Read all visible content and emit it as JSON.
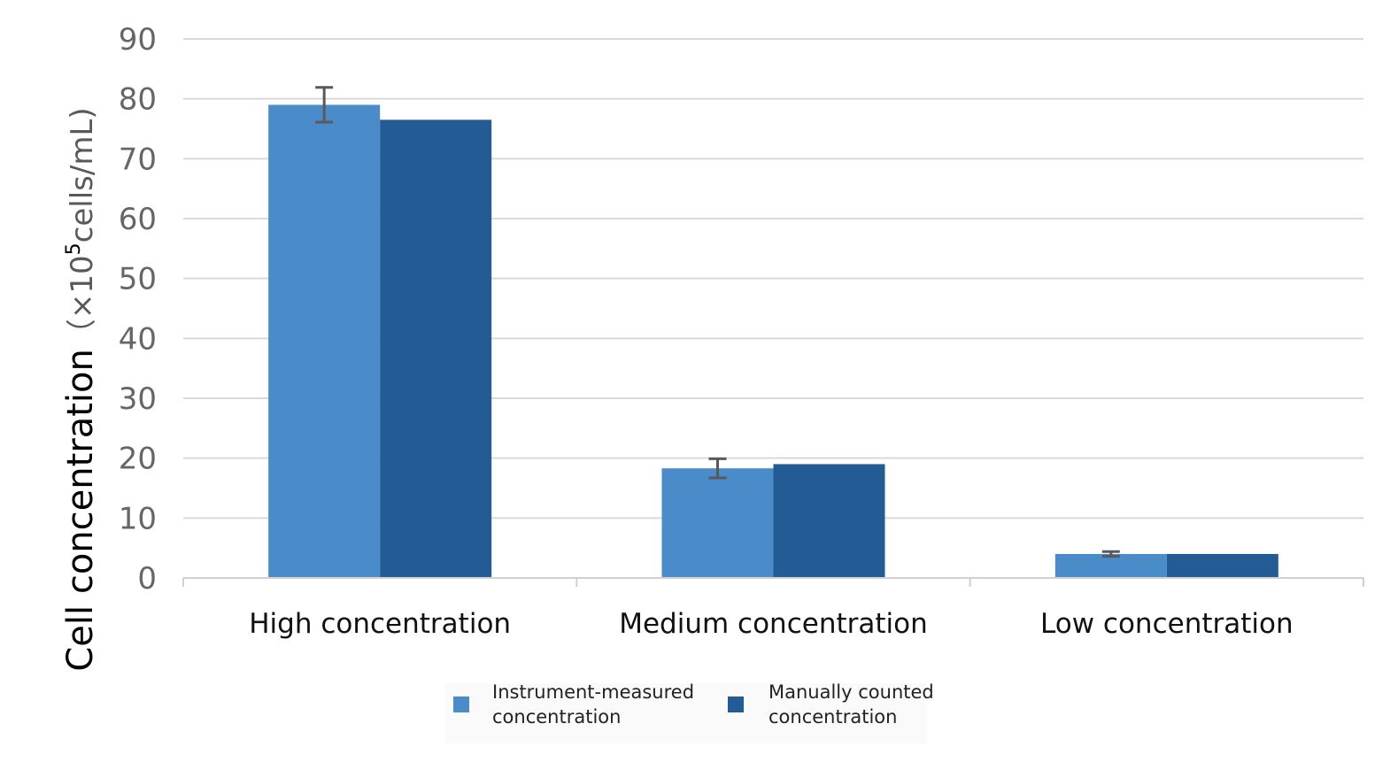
{
  "chart_data": {
    "type": "bar",
    "categories": [
      "High concentration",
      "Medium concentration",
      "Low concentration"
    ],
    "series": [
      {
        "name": "Instrument-measured concentration",
        "values": [
          79,
          18.3,
          4
        ],
        "error": [
          2.9,
          1.6,
          0.4
        ],
        "color": "#4a8cc9"
      },
      {
        "name": "Manually counted concentration",
        "values": [
          76.5,
          19,
          4
        ],
        "color": "#235b94"
      }
    ],
    "ylabel": {
      "main": "Cell concentration",
      "unit_open": "（×10",
      "unit_sup": "5",
      "unit_close": "cells/mL)"
    },
    "ylim": [
      0,
      90
    ],
    "yticks": [
      "0",
      "10",
      "20",
      "30",
      "40",
      "50",
      "60",
      "70",
      "80",
      "90"
    ],
    "grid": true,
    "legend": {
      "position": "bottom",
      "items": [
        {
          "lines": [
            "Instrument-measured",
            "concentration"
          ],
          "color": "#4a8cc9"
        },
        {
          "lines": [
            "Manually counted",
            "concentration"
          ],
          "color": "#235b94"
        }
      ]
    },
    "colors": {
      "grid": "#d9d9d9",
      "axis": "#d0d0d0",
      "error_bar": "#595959"
    }
  }
}
